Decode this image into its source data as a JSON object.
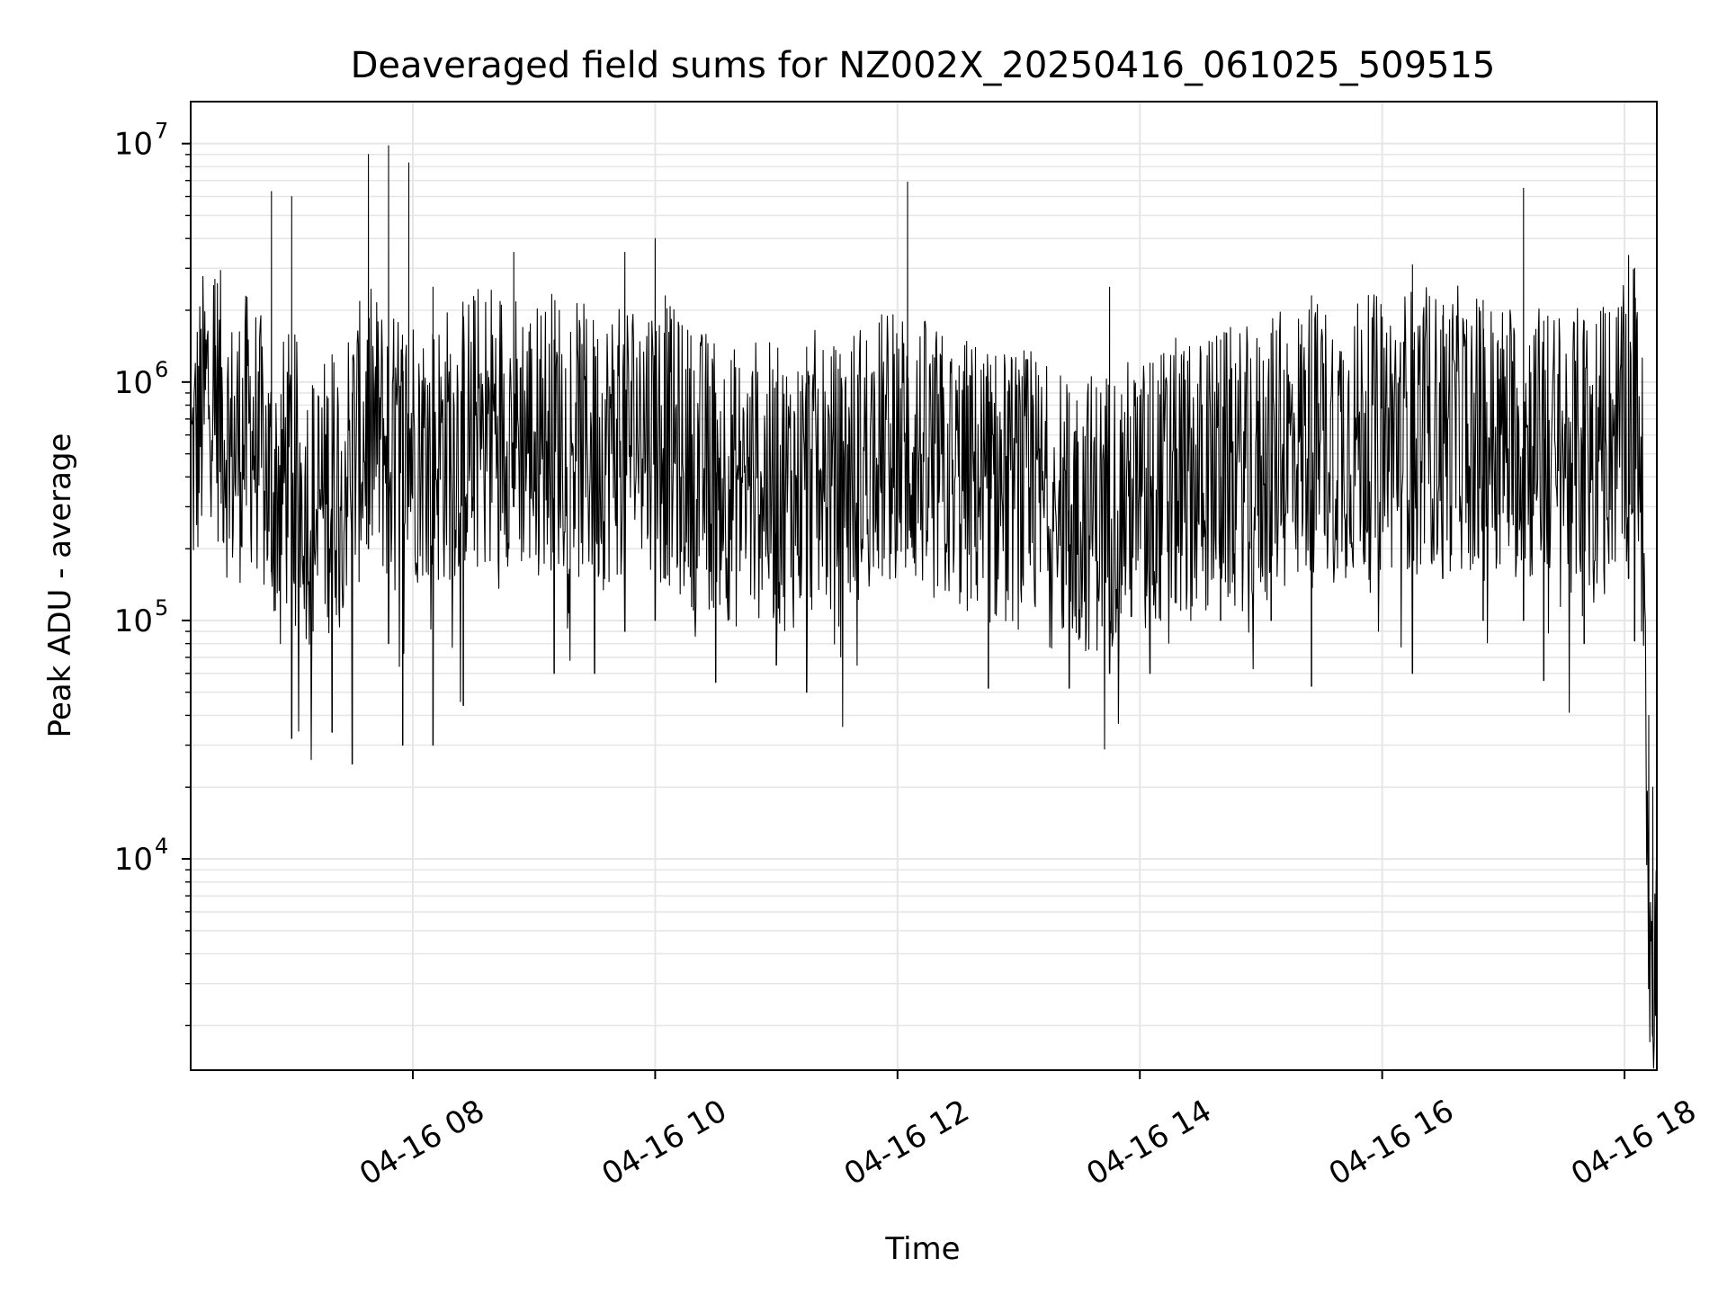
{
  "chart_data": {
    "type": "line",
    "title": "Deaveraged field sums for NZ002X_20250416_061025_509515",
    "xlabel": "Time",
    "ylabel": "Peak ADU - average",
    "yscale": "log",
    "x_tick_labels": [
      "04-16 08",
      "04-16 10",
      "04-16 12",
      "04-16 14",
      "04-16 16",
      "04-16 18"
    ],
    "y_tick_labels": [
      {
        "base": "10",
        "exp": "4"
      },
      {
        "base": "10",
        "exp": "5"
      },
      {
        "base": "10",
        "exp": "6"
      },
      {
        "base": "10",
        "exp": "7"
      }
    ],
    "xlim": [
      "2025-04-16 06:10",
      "2025-04-16 18:16"
    ],
    "ylim": [
      1300,
      15000000
    ],
    "grid": true,
    "line_color": "#000000",
    "grid_color": "#e6e6e6",
    "series": [
      {
        "x": [
          "2025-04-16 06:10",
          "2025-04-16 06:20",
          "2025-04-16 06:30",
          "2025-04-16 06:40",
          "2025-04-16 06:50",
          "2025-04-16 07:00",
          "2025-04-16 07:10",
          "2025-04-16 07:20",
          "2025-04-16 07:30",
          "2025-04-16 07:40",
          "2025-04-16 07:50",
          "2025-04-16 08:00",
          "2025-04-16 08:10",
          "2025-04-16 08:20",
          "2025-04-16 08:30",
          "2025-04-16 08:40",
          "2025-04-16 08:50",
          "2025-04-16 09:00",
          "2025-04-16 09:10",
          "2025-04-16 09:20",
          "2025-04-16 09:30",
          "2025-04-16 09:40",
          "2025-04-16 09:50",
          "2025-04-16 10:00",
          "2025-04-16 10:10",
          "2025-04-16 10:20",
          "2025-04-16 10:30",
          "2025-04-16 10:40",
          "2025-04-16 10:50",
          "2025-04-16 11:00",
          "2025-04-16 11:10",
          "2025-04-16 11:20",
          "2025-04-16 11:30",
          "2025-04-16 11:40",
          "2025-04-16 11:50",
          "2025-04-16 12:00",
          "2025-04-16 12:10",
          "2025-04-16 12:20",
          "2025-04-16 12:30",
          "2025-04-16 12:40",
          "2025-04-16 12:50",
          "2025-04-16 13:00",
          "2025-04-16 13:10",
          "2025-04-16 13:20",
          "2025-04-16 13:30",
          "2025-04-16 13:40",
          "2025-04-16 13:50",
          "2025-04-16 14:00",
          "2025-04-16 14:10",
          "2025-04-16 14:20",
          "2025-04-16 14:30",
          "2025-04-16 14:40",
          "2025-04-16 14:50",
          "2025-04-16 15:00",
          "2025-04-16 15:10",
          "2025-04-16 15:20",
          "2025-04-16 15:30",
          "2025-04-16 15:40",
          "2025-04-16 15:50",
          "2025-04-16 16:00",
          "2025-04-16 16:10",
          "2025-04-16 16:20",
          "2025-04-16 16:30",
          "2025-04-16 16:40",
          "2025-04-16 16:50",
          "2025-04-16 17:00",
          "2025-04-16 17:10",
          "2025-04-16 17:20",
          "2025-04-16 17:30",
          "2025-04-16 17:40",
          "2025-04-16 17:50",
          "2025-04-16 18:00",
          "2025-04-16 18:04",
          "2025-04-16 18:08",
          "2025-04-16 18:10",
          "2025-04-16 18:12",
          "2025-04-16 18:14",
          "2025-04-16 18:16"
        ],
        "values": [
          600000,
          1500000,
          700000,
          900000,
          500000,
          600000,
          400000,
          500000,
          700000,
          900000,
          700000,
          800000,
          700000,
          800000,
          900000,
          1000000,
          900000,
          800000,
          900000,
          800000,
          700000,
          800000,
          900000,
          900000,
          700000,
          600000,
          600000,
          500000,
          550000,
          500000,
          500000,
          600000,
          500000,
          650000,
          700000,
          750000,
          700000,
          600000,
          550000,
          550000,
          500000,
          500000,
          450000,
          400000,
          400000,
          400000,
          450000,
          450000,
          500000,
          550000,
          550000,
          600000,
          600000,
          600000,
          700000,
          800000,
          800000,
          800000,
          800000,
          850000,
          900000,
          900000,
          850000,
          900000,
          800000,
          800000,
          800000,
          750000,
          700000,
          750000,
          800000,
          900000,
          1200000,
          900000,
          200000,
          10000,
          3000,
          5000
        ]
      }
    ],
    "peaks": [
      {
        "x": "2025-04-16 06:22",
        "high": 2700000,
        "low": 600000
      },
      {
        "x": "2025-04-16 06:50",
        "high": 6300000,
        "low": 160000
      },
      {
        "x": "2025-04-16 07:00",
        "high": 6000000,
        "low": 32000
      },
      {
        "x": "2025-04-16 07:20",
        "high": 1300000,
        "low": 34000
      },
      {
        "x": "2025-04-16 07:30",
        "high": 900000,
        "low": 25000
      },
      {
        "x": "2025-04-16 07:38",
        "high": 9000000,
        "low": 200000
      },
      {
        "x": "2025-04-16 07:48",
        "high": 9800000,
        "low": 80000
      },
      {
        "x": "2025-04-16 07:55",
        "high": 1300000,
        "low": 30000
      },
      {
        "x": "2025-04-16 07:58",
        "high": 8300000,
        "low": 300000
      },
      {
        "x": "2025-04-16 08:10",
        "high": 2500000,
        "low": 30000
      },
      {
        "x": "2025-04-16 08:25",
        "high": 1400000,
        "low": 44000
      },
      {
        "x": "2025-04-16 08:50",
        "high": 3500000,
        "low": 300000
      },
      {
        "x": "2025-04-16 09:10",
        "high": 1500000,
        "low": 60000
      },
      {
        "x": "2025-04-16 09:30",
        "high": 1400000,
        "low": 60000
      },
      {
        "x": "2025-04-16 09:45",
        "high": 3500000,
        "low": 90000
      },
      {
        "x": "2025-04-16 10:00",
        "high": 4000000,
        "low": 100000
      },
      {
        "x": "2025-04-16 10:05",
        "high": 2300000,
        "low": 150000
      },
      {
        "x": "2025-04-16 10:30",
        "high": 900000,
        "low": 55000
      },
      {
        "x": "2025-04-16 11:00",
        "high": 1000000,
        "low": 65000
      },
      {
        "x": "2025-04-16 11:15",
        "high": 1400000,
        "low": 50000
      },
      {
        "x": "2025-04-16 12:05",
        "high": 6900000,
        "low": 200000
      },
      {
        "x": "2025-04-16 12:45",
        "high": 1000000,
        "low": 52000
      },
      {
        "x": "2025-04-16 13:25",
        "high": 900000,
        "low": 52000
      },
      {
        "x": "2025-04-16 13:45",
        "high": 2500000,
        "low": 60000
      },
      {
        "x": "2025-04-16 14:05",
        "high": 1200000,
        "low": 60000
      },
      {
        "x": "2025-04-16 14:40",
        "high": 1500000,
        "low": 100000
      },
      {
        "x": "2025-04-16 15:05",
        "high": 1600000,
        "low": 100000
      },
      {
        "x": "2025-04-16 15:25",
        "high": 2300000,
        "low": 53000
      },
      {
        "x": "2025-04-16 16:15",
        "high": 3100000,
        "low": 60000
      },
      {
        "x": "2025-04-16 16:30",
        "high": 1900000,
        "low": 150000
      },
      {
        "x": "2025-04-16 16:50",
        "high": 2200000,
        "low": 100000
      },
      {
        "x": "2025-04-16 17:10",
        "high": 6500000,
        "low": 100000
      },
      {
        "x": "2025-04-16 17:20",
        "high": 1800000,
        "low": 56000
      },
      {
        "x": "2025-04-16 17:40",
        "high": 1800000,
        "low": 80000
      },
      {
        "x": "2025-04-16 18:02",
        "high": 3400000,
        "low": 150000
      },
      {
        "x": "2025-04-16 18:05",
        "high": 3000000,
        "low": 82000
      },
      {
        "x": "2025-04-16 18:12",
        "high": 40000,
        "low": 6500
      },
      {
        "x": "2025-04-16 18:14",
        "high": 20000,
        "low": 1800
      }
    ]
  }
}
